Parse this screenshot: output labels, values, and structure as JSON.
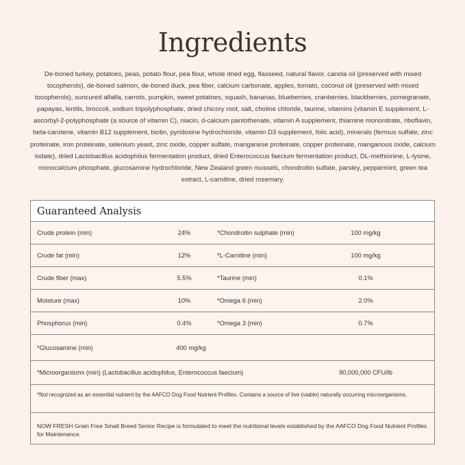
{
  "title": "Ingredients",
  "ingredients": "De-boned turkey, potatoes, peas, potato flour, pea flour, whole dried egg, flaxseed, natural flavor, canola oil (preserved with mixed tocopherols), de-boned salmon, de-boned duck, pea fiber, calcium carbonate, apples, tomato, coconut oil (preserved with mixed tocopherols), suncured alfalfa, carrots, pumpkin, sweet potatoes, squash, bananas, blueberries, cranberries, blackberries, pomegranate, papayas, lentils, broccoli, sodium tripolyphosphate, dried chicory root, salt, choline chloride, taurine, vitamins (vitamin E supplement, L-ascorbyl-2-polyphosphate (a source of vitamin C), niacin, d-calcium pantothenate, vitamin A supplement, thiamine mononitrate, riboflavin, beta-carotene, vitamin B12 supplement, biotin, pyridoxine hydrochloride, vitamin D3 supplement, folic acid), minerals (ferrous sulfate, zinc proteinate, iron proteinate, selenium yeast, zinc oxide, copper sulfate, manganese proteinate, copper proteinate, manganous oxide, calcium iodate), dried Lactobacillus acidophilus fermentation product, dried Enterococcus faecium fermentation product, DL-methionine, L-lysine, monocalcium phosphate, glucosamine hydrochloride, New Zealand green mussels, chondroitin sulfate, parsley, peppermint, green tea extract, L-carnitine, dried rosemary.",
  "analysis": {
    "title": "Guaranteed Analysis",
    "rows": [
      {
        "n1": "Crude protein (min)",
        "v1": "24%",
        "n2": "*Chondroitin sulphate (min)",
        "v2": "100 mg/kg"
      },
      {
        "n1": "Crude fat (min)",
        "v1": "12%",
        "n2": "*L-Carnitine (min)",
        "v2": "100 mg/kg"
      },
      {
        "n1": "Crude fiber (max)",
        "v1": "5.5%",
        "n2": "*Taurine (min)",
        "v2": "0.1%"
      },
      {
        "n1": "Moisture (max)",
        "v1": "10%",
        "n2": "*Omega 6 (min)",
        "v2": "2.0%"
      },
      {
        "n1": "Phosphorus (min)",
        "v1": "0.4%",
        "n2": "*Omega 3 (min)",
        "v2": "0.7%"
      },
      {
        "n1": "*Glucosamine (min)",
        "v1": "400 mg/kg"
      },
      {
        "n1": "*Microorganisms (min) (Lactobacillus acidophilus, Enterococcus faecium)",
        "v1": "90,000,000 CFU/lb"
      }
    ],
    "footnote": "*Not recognized as an essential nutrient by the AAFCO Dog Food Nutrient Profiles. Contains a source of live (viable) naturally occurring microorganisms.",
    "statement": "NOW FRESH Grain Free Small Breed Senior Recipe is formulated to meet the nutritional levels established by the AAFCO Dog Food Nutrient Profiles for Maintenance."
  }
}
